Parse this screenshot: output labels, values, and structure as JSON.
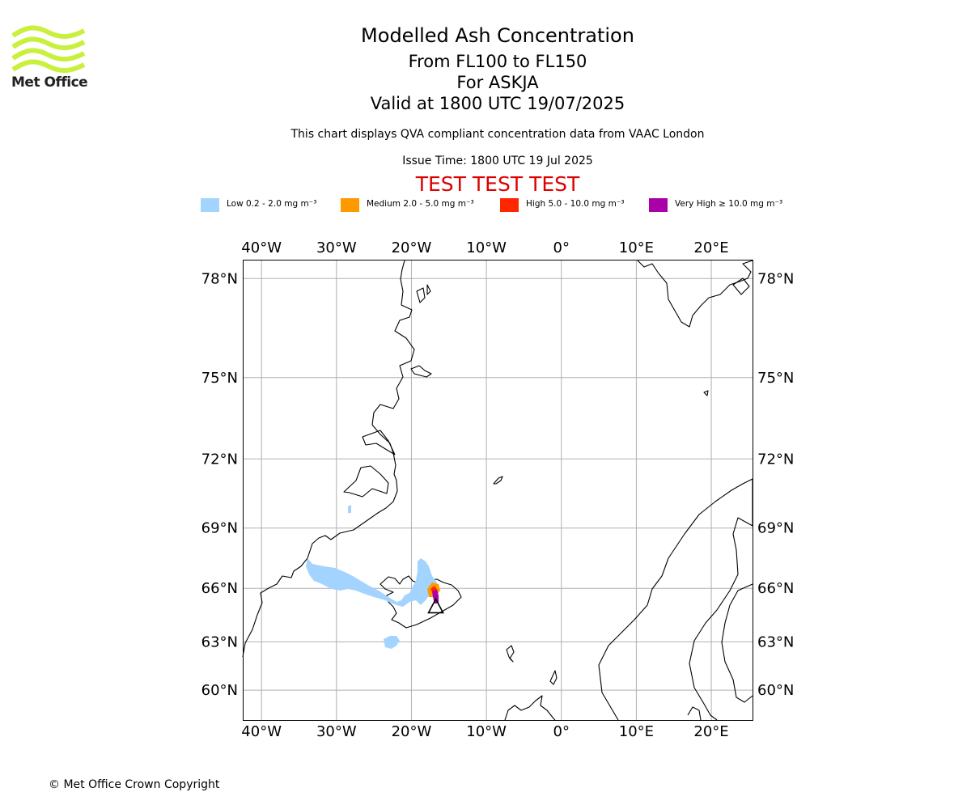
{
  "logo": {
    "text": "Met Office",
    "color": "#c8f03c"
  },
  "header": {
    "title": "Modelled Ash Concentration",
    "levels": "From FL100 to FL150",
    "volcano": "For ASKJA",
    "valid": "Valid at 1800 UTC 19/07/2025",
    "note": "This chart displays QVA compliant concentration data from VAAC London",
    "issue": "Issue Time: 1800 UTC 19 Jul 2025",
    "warning": "TEST TEST TEST"
  },
  "legend": [
    {
      "label": "Low 0.2 - 2.0 mg m⁻³",
      "color": "#a3d3ff"
    },
    {
      "label": "Medium 2.0 - 5.0 mg m⁻³",
      "color": "#ff9900"
    },
    {
      "label": "High 5.0 - 10.0 mg m⁻³",
      "color": "#ff2600"
    },
    {
      "label": "Very High  ≥  10.0 mg m⁻³",
      "color": "#aa00aa"
    }
  ],
  "map": {
    "lon_range": [
      -42.5,
      25.5
    ],
    "lat_range": [
      58,
      78.5
    ],
    "lon_ticks": [
      {
        "value": -40,
        "label": "40°W"
      },
      {
        "value": -30,
        "label": "30°W"
      },
      {
        "value": -20,
        "label": "20°W"
      },
      {
        "value": -10,
        "label": "10°W"
      },
      {
        "value": 0,
        "label": "0°"
      },
      {
        "value": 10,
        "label": "10°E"
      },
      {
        "value": 20,
        "label": "20°E"
      }
    ],
    "lat_ticks": [
      {
        "value": 78,
        "label": "78°N"
      },
      {
        "value": 75,
        "label": "75°N"
      },
      {
        "value": 72,
        "label": "72°N"
      },
      {
        "value": 69,
        "label": "69°N"
      },
      {
        "value": 66,
        "label": "66°N"
      },
      {
        "value": 63,
        "label": "63°N"
      },
      {
        "value": 60,
        "label": "60°N"
      }
    ],
    "grid": true,
    "grid_color": "#b0b0b0",
    "coast_color": "#000000",
    "volcano_location": {
      "lon": -16.75,
      "lat": 65.03
    }
  },
  "copyright": "© Met Office Crown Copyright"
}
